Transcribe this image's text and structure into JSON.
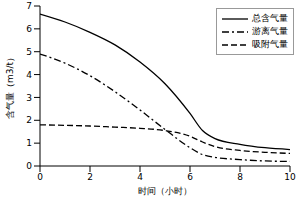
{
  "chart_data": {
    "type": "line",
    "x_label": "时间（小时）",
    "y_label": "含气量（m3/t）",
    "x": [
      0,
      1,
      2,
      3,
      4,
      5,
      6,
      6.5,
      7,
      8,
      9,
      10
    ],
    "series": [
      {
        "name": "总含气量",
        "color": "#000000",
        "line_style": "solid",
        "values": [
          6.65,
          6.3,
          5.85,
          5.3,
          4.55,
          3.6,
          2.3,
          1.55,
          1.2,
          0.95,
          0.8,
          0.72
        ]
      },
      {
        "name": "游离气量",
        "color": "#000000",
        "line_style": "dashdot",
        "values": [
          4.9,
          4.5,
          3.95,
          3.25,
          2.45,
          1.6,
          0.8,
          0.5,
          0.38,
          0.28,
          0.22,
          0.2
        ]
      },
      {
        "name": "吸附气量",
        "color": "#000000",
        "line_style": "dashed",
        "values": [
          1.8,
          1.78,
          1.75,
          1.7,
          1.65,
          1.55,
          1.3,
          1.05,
          0.85,
          0.68,
          0.6,
          0.55
        ]
      }
    ],
    "xlim": [
      0,
      10
    ],
    "ylim": [
      0,
      7
    ],
    "xticks": [
      0,
      2,
      4,
      6,
      8,
      10
    ],
    "yticks": [
      0,
      1,
      2,
      3,
      4,
      5,
      6,
      7
    ],
    "grid": false,
    "legend": "upper right"
  }
}
